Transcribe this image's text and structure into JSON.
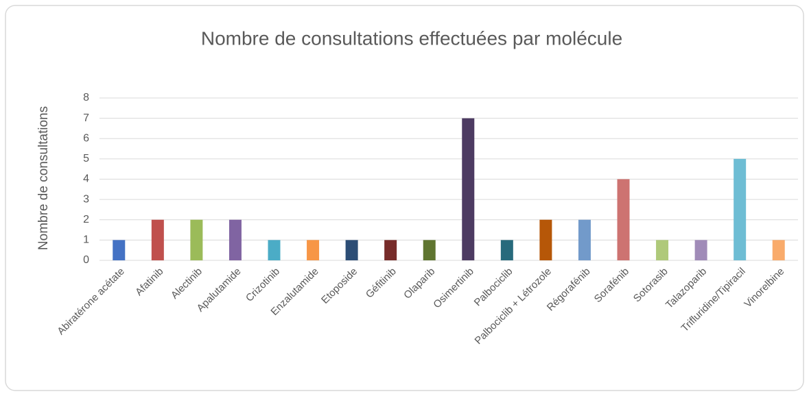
{
  "chart_data": {
    "type": "bar",
    "title": "Nombre de consultations effectuées par molécule",
    "y_label": "Nombre de consultations",
    "categories": [
      "Abiratérone acétate",
      "Afatinib",
      "Alectinib",
      "Apalutamide",
      "Crizotinib",
      "Enzalutamide",
      "Etoposide",
      "Géfitinib",
      "Olaparib",
      "Osimertinib",
      "Palbociclib",
      "Palbociclib + Létrozole",
      "Régorafénib",
      "Sorafénib",
      "Sotorasib",
      "Talazoparib",
      "Trifluridine/Tipiracil",
      "Vinorelbine"
    ],
    "values": [
      1,
      2,
      2,
      2,
      1,
      1,
      1,
      1,
      1,
      7,
      1,
      2,
      2,
      4,
      1,
      1,
      5,
      1
    ],
    "colors": [
      "#4472c4",
      "#c0504d",
      "#9bbb59",
      "#8064a2",
      "#4bacc6",
      "#f79646",
      "#2c4d75",
      "#772c2a",
      "#5f7530",
      "#4d3b62",
      "#276a7c",
      "#b65708",
      "#729aca",
      "#cd7371",
      "#afc97a",
      "#a08bb8",
      "#6ebdd4",
      "#f9ab6b"
    ],
    "ylim": [
      0,
      8
    ],
    "yticks": [
      0,
      1,
      2,
      3,
      4,
      5,
      6,
      7,
      8
    ],
    "grid": true
  }
}
